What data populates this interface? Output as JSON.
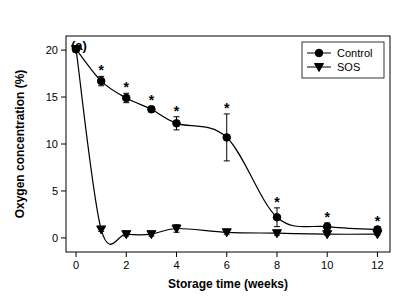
{
  "chart_data": {
    "type": "line",
    "title": "(a)",
    "x_label": "Storage time (weeks)",
    "y_label": "Oxygen concentration (%)",
    "x": [
      0,
      1,
      2,
      3,
      4,
      6,
      8,
      10,
      12
    ],
    "series": [
      {
        "name": "Control",
        "color": "#000000",
        "marker": "circle",
        "line_style": "solid",
        "values": [
          20.1,
          16.7,
          14.9,
          13.7,
          12.2,
          10.7,
          2.2,
          1.2,
          0.9
        ],
        "errors": [
          0.2,
          0.5,
          0.5,
          0.3,
          0.7,
          2.5,
          1.0,
          0.4,
          0.3
        ]
      },
      {
        "name": "SOS",
        "color": "#000000",
        "marker": "triangle-down",
        "line_style": "solid",
        "values": [
          20.1,
          0.9,
          0.4,
          0.4,
          1.0,
          0.6,
          0.5,
          0.4,
          0.4
        ],
        "errors": [
          0.1,
          0.2,
          0.2,
          0.2,
          0.4,
          0.2,
          0.2,
          0.1,
          0.1
        ]
      }
    ],
    "annotations": [
      {
        "x": 1,
        "text": "*"
      },
      {
        "x": 2,
        "text": "*"
      },
      {
        "x": 3,
        "text": "*"
      },
      {
        "x": 4,
        "text": "*"
      },
      {
        "x": 6,
        "text": "*"
      },
      {
        "x": 8,
        "text": "*"
      },
      {
        "x": 10,
        "text": "*"
      },
      {
        "x": 12,
        "text": "*"
      }
    ],
    "xlim": [
      -0.4,
      12.5
    ],
    "xticks": [
      0,
      2,
      4,
      6,
      8,
      10,
      12
    ],
    "ylim": [
      -1.5,
      21.5
    ],
    "yticks": [
      0,
      5,
      10,
      15,
      20
    ],
    "grid": false,
    "legend": "upper right"
  }
}
